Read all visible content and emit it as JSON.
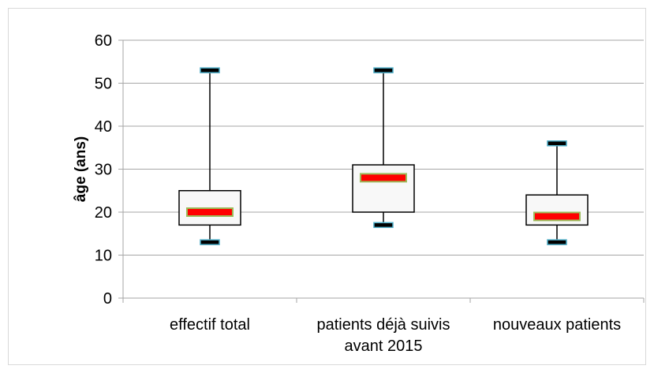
{
  "chart_data": {
    "type": "boxplot",
    "title": "",
    "xlabel": "",
    "ylabel": "âge (ans)",
    "ylim": [
      0,
      60
    ],
    "yticks": [
      0,
      10,
      20,
      30,
      40,
      50,
      60
    ],
    "grid": true,
    "legend": "none",
    "categories": [
      [
        "effectif total"
      ],
      [
        "patients déjà suivis",
        "avant 2015"
      ],
      [
        "nouveaux patients"
      ]
    ],
    "boxes": [
      {
        "min": 13,
        "q1": 17,
        "median": 20,
        "q3": 25,
        "max": 53
      },
      {
        "min": 17,
        "q1": 20,
        "median": 28,
        "q3": 31,
        "max": 53
      },
      {
        "min": 13,
        "q1": 17,
        "median": 19,
        "q3": 24,
        "max": 36
      }
    ],
    "colors": {
      "gridline": "#a6a6a6",
      "box_fill": "#f8f8f8",
      "box_stroke": "#000000",
      "median_fill": "#ff0000",
      "median_stroke": "#9bbb59",
      "whisker_cap_fill": "#000000",
      "whisker_cap_stroke": "#4bacc6"
    }
  }
}
